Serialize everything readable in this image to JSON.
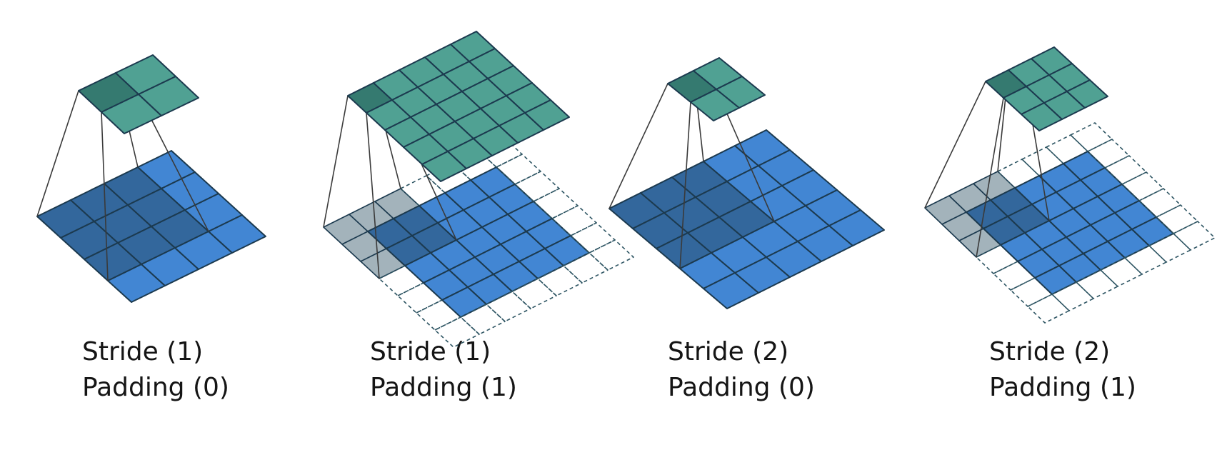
{
  "colors": {
    "input_cell": "#4286D3",
    "input_cell_in_window": "#33679C",
    "padding_cell_in_window": "#A3B3BB",
    "output_cell": "#50A193",
    "output_cell_active": "#357A70",
    "grid_line": "#1C3A4F",
    "projection_line": "#3A3A3A",
    "padding_border": "#2E5563"
  },
  "panels": [
    {
      "id": "stride1-pad0",
      "stride_label": "Stride (1)",
      "padding_label": "Padding (0)",
      "stride": 1,
      "padding": 0,
      "input_size": 4,
      "output_size": 2,
      "kernel_size": 3
    },
    {
      "id": "stride1-pad1",
      "stride_label": "Stride (1)",
      "padding_label": "Padding (1)",
      "stride": 1,
      "padding": 1,
      "input_size": 5,
      "output_size": 5,
      "kernel_size": 3
    },
    {
      "id": "stride2-pad0",
      "stride_label": "Stride (2)",
      "padding_label": "Padding (0)",
      "stride": 2,
      "padding": 0,
      "input_size": 5,
      "output_size": 2,
      "kernel_size": 3
    },
    {
      "id": "stride2-pad1",
      "stride_label": "Stride (2)",
      "padding_label": "Padding (1)",
      "stride": 2,
      "padding": 1,
      "input_size": 5,
      "output_size": 3,
      "kernel_size": 3
    }
  ]
}
